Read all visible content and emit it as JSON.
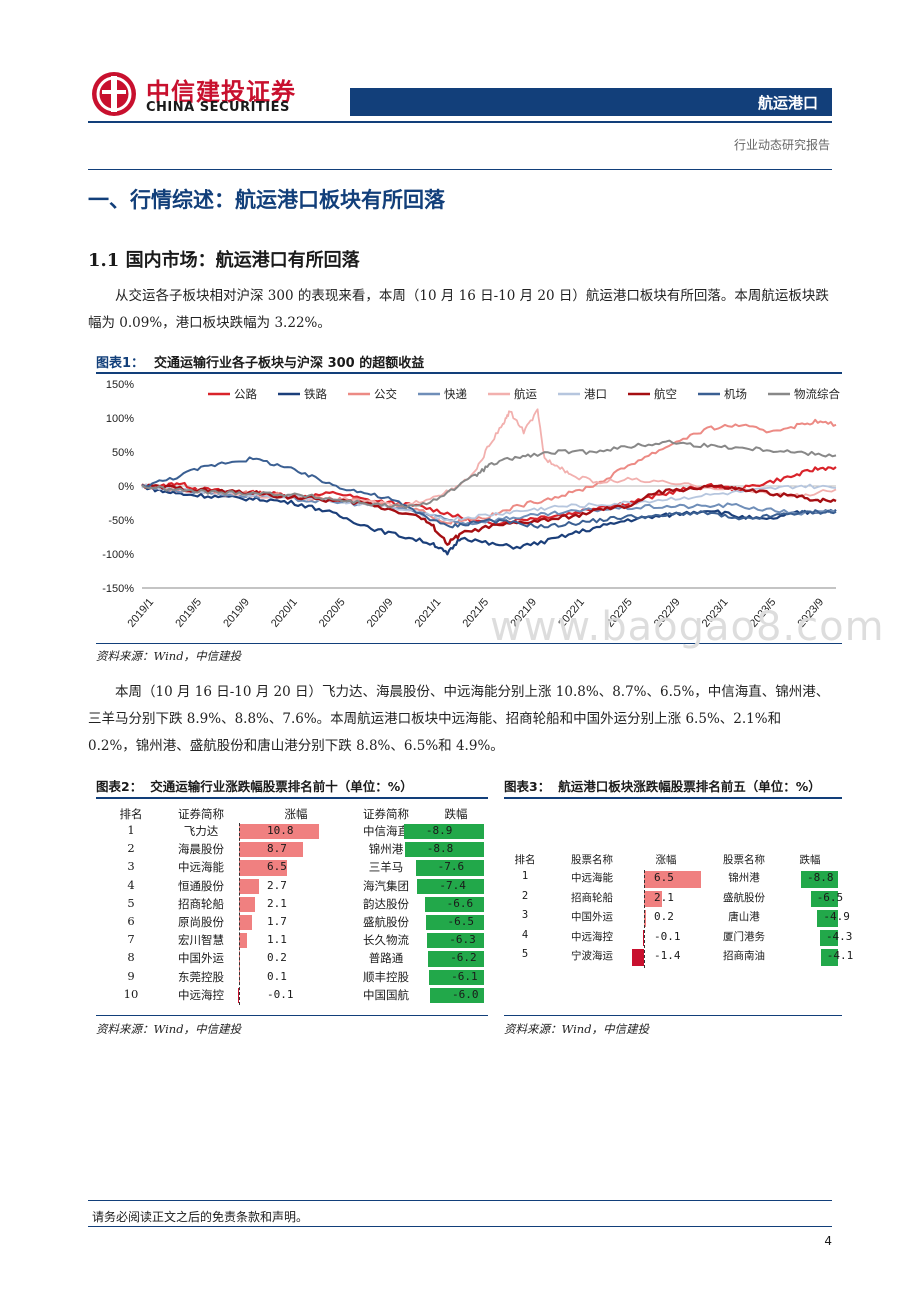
{
  "header": {
    "logo_cn": "中信建投证券",
    "logo_en": "CHINA SECURITIES",
    "sector": "航运港口",
    "report_type": "行业动态研究报告"
  },
  "section_title": "一、行情综述：航运港口板块有所回落",
  "subsection_title": "1.1 国内市场：航运港口有所回落",
  "paragraph1": "从交运各子板块相对沪深 300 的表现来看，本周（10 月 16 日-10 月 20 日）航运港口板块有所回落。本周航运板块跌幅为 0.09%，港口板块跌幅为 3.22%。",
  "paragraph2": "本周（10 月 16 日-10 月 20 日）飞力达、海晨股份、中远海能分别上涨 10.8%、8.7%、6.5%，中信海直、锦州港、三羊马分别下跌 8.9%、8.8%、7.6%。本周航运港口板块中远海能、招商轮船和中国外运分别上涨 6.5%、2.1%和 0.2%，锦州港、盛航股份和唐山港分别下跌 8.8%、6.5%和 4.9%。",
  "watermark": "www.baogao8.com",
  "fig1": {
    "num": "图表1：",
    "title": "交通运输行业各子板块与沪深 300 的超额收益",
    "source": "资料来源：Wind，中信建投"
  },
  "chart_data": {
    "type": "line",
    "title": "",
    "ylim": [
      -150,
      150
    ],
    "y_ticks": [
      "150%",
      "100%",
      "50%",
      "0%",
      "-50%",
      "-100%",
      "-150%"
    ],
    "x_ticks": [
      "2019/1",
      "2019/5",
      "2019/9",
      "2020/1",
      "2020/5",
      "2020/9",
      "2021/1",
      "2021/5",
      "2021/9",
      "2022/1",
      "2022/5",
      "2022/9",
      "2023/1",
      "2023/5",
      "2023/9"
    ],
    "legend_position": "top",
    "series": [
      {
        "name": "公路",
        "color": "#d9232a",
        "width": 2.2,
        "x": [
          0,
          0.02,
          0.05,
          0.08,
          0.12,
          0.16,
          0.2,
          0.24,
          0.28,
          0.32,
          0.36,
          0.4,
          0.44,
          0.47,
          0.5,
          0.54,
          0.58,
          0.62,
          0.66,
          0.7,
          0.74,
          0.78,
          0.82,
          0.86,
          0.9,
          0.94,
          0.97,
          1.0
        ],
        "y": [
          0,
          -3,
          5,
          -4,
          -8,
          -10,
          -12,
          -15,
          -10,
          -20,
          -25,
          -30,
          -40,
          -50,
          -55,
          -50,
          -45,
          -40,
          -30,
          -25,
          -15,
          -5,
          0,
          -5,
          5,
          15,
          25,
          28
        ]
      },
      {
        "name": "铁路",
        "color": "#1b3f7a",
        "width": 2.2,
        "x": [
          0,
          0.03,
          0.06,
          0.1,
          0.14,
          0.18,
          0.22,
          0.26,
          0.3,
          0.34,
          0.38,
          0.42,
          0.44,
          0.46,
          0.5,
          0.54,
          0.58,
          0.62,
          0.66,
          0.7,
          0.74,
          0.78,
          0.82,
          0.86,
          0.9,
          0.94,
          0.97,
          1.0
        ],
        "y": [
          0,
          -8,
          -12,
          -15,
          -18,
          -20,
          -25,
          -35,
          -50,
          -65,
          -75,
          -85,
          -100,
          -75,
          -85,
          -90,
          -82,
          -70,
          -60,
          -50,
          -45,
          -40,
          -35,
          -45,
          -50,
          -40,
          -38,
          -35
        ]
      },
      {
        "name": "公交",
        "color": "#ec8a84",
        "width": 2.0,
        "x": [
          0,
          0.04,
          0.08,
          0.12,
          0.16,
          0.2,
          0.24,
          0.28,
          0.32,
          0.36,
          0.4,
          0.44,
          0.46,
          0.5,
          0.54,
          0.58,
          0.62,
          0.66,
          0.7,
          0.74,
          0.78,
          0.82,
          0.86,
          0.9,
          0.94,
          0.97,
          1.0
        ],
        "y": [
          0,
          -5,
          -8,
          -12,
          -10,
          -12,
          -18,
          -20,
          -22,
          -30,
          -35,
          -55,
          -50,
          -45,
          -30,
          -20,
          -10,
          5,
          30,
          50,
          70,
          85,
          90,
          80,
          88,
          95,
          90
        ]
      },
      {
        "name": "快递",
        "color": "#6f8eb8",
        "width": 2.0,
        "x": [
          0,
          0.05,
          0.1,
          0.15,
          0.2,
          0.25,
          0.3,
          0.35,
          0.4,
          0.44,
          0.47,
          0.52,
          0.56,
          0.6,
          0.65,
          0.7,
          0.75,
          0.8,
          0.85,
          0.9,
          0.95,
          1.0
        ],
        "y": [
          0,
          -6,
          -10,
          -14,
          -18,
          -22,
          -25,
          -30,
          -38,
          -50,
          -55,
          -48,
          -44,
          -40,
          -35,
          -32,
          -30,
          -30,
          -28,
          -35,
          -40,
          -38
        ]
      },
      {
        "name": "航运",
        "color": "#f2b0ae",
        "width": 1.8,
        "x": [
          0,
          0.06,
          0.12,
          0.18,
          0.24,
          0.3,
          0.34,
          0.38,
          0.42,
          0.45,
          0.48,
          0.5,
          0.52,
          0.53,
          0.55,
          0.57,
          0.58,
          0.6,
          0.62,
          0.66,
          0.7,
          0.75,
          0.8,
          0.85,
          0.9,
          0.95,
          1.0
        ],
        "y": [
          0,
          -5,
          -10,
          -15,
          -18,
          -20,
          -25,
          -30,
          -15,
          -5,
          20,
          60,
          90,
          110,
          80,
          110,
          40,
          30,
          15,
          5,
          10,
          5,
          0,
          -5,
          -10,
          -15,
          -5
        ]
      },
      {
        "name": "港口",
        "color": "#b6c6de",
        "width": 1.8,
        "x": [
          0,
          0.05,
          0.1,
          0.15,
          0.2,
          0.25,
          0.3,
          0.35,
          0.4,
          0.44,
          0.48,
          0.52,
          0.56,
          0.6,
          0.65,
          0.7,
          0.75,
          0.8,
          0.85,
          0.9,
          0.95,
          1.0
        ],
        "y": [
          0,
          -5,
          -8,
          -12,
          -15,
          -18,
          -25,
          -30,
          -40,
          -50,
          -45,
          -40,
          -35,
          -30,
          -28,
          -25,
          -20,
          -15,
          -10,
          -5,
          0,
          -3
        ]
      },
      {
        "name": "航空",
        "color": "#a50e12",
        "width": 2.4,
        "x": [
          0,
          0.04,
          0.08,
          0.12,
          0.16,
          0.2,
          0.24,
          0.28,
          0.32,
          0.36,
          0.4,
          0.42,
          0.44,
          0.46,
          0.5,
          0.54,
          0.58,
          0.62,
          0.66,
          0.7,
          0.74,
          0.78,
          0.82,
          0.86,
          0.9,
          0.94,
          0.97,
          1.0
        ],
        "y": [
          0,
          -2,
          -6,
          -8,
          -10,
          -15,
          -18,
          -22,
          -25,
          -35,
          -45,
          -60,
          -85,
          -70,
          -60,
          -55,
          -50,
          -45,
          -35,
          -30,
          -10,
          -5,
          0,
          -5,
          -10,
          -15,
          -20,
          -22
        ]
      },
      {
        "name": "机场",
        "color": "#3a5f92",
        "width": 2.0,
        "x": [
          0,
          0.04,
          0.08,
          0.12,
          0.16,
          0.2,
          0.24,
          0.28,
          0.32,
          0.36,
          0.4,
          0.44,
          0.47,
          0.5,
          0.54,
          0.58,
          0.62,
          0.66,
          0.7,
          0.74,
          0.78,
          0.82,
          0.86,
          0.9,
          0.94,
          0.97,
          1.0
        ],
        "y": [
          0,
          10,
          25,
          35,
          40,
          30,
          15,
          0,
          -10,
          -20,
          -40,
          -60,
          -55,
          -50,
          -55,
          -60,
          -55,
          -50,
          -45,
          -45,
          -40,
          -40,
          -50,
          -45,
          -40,
          -38,
          -38
        ]
      },
      {
        "name": "物流综合",
        "color": "#888888",
        "width": 2.0,
        "x": [
          0,
          0.04,
          0.08,
          0.12,
          0.16,
          0.2,
          0.24,
          0.28,
          0.32,
          0.36,
          0.4,
          0.44,
          0.48,
          0.5,
          0.53,
          0.56,
          0.6,
          0.64,
          0.68,
          0.72,
          0.76,
          0.8,
          0.84,
          0.88,
          0.92,
          0.96,
          1.0
        ],
        "y": [
          0,
          -5,
          -8,
          -10,
          -10,
          -12,
          -15,
          -20,
          -25,
          -30,
          -30,
          -10,
          15,
          30,
          40,
          45,
          50,
          50,
          55,
          60,
          65,
          60,
          58,
          55,
          52,
          48,
          45
        ]
      }
    ]
  },
  "fig2": {
    "num": "图表2：",
    "title": "交通运输行业涨跌幅股票排名前十（单位：%）",
    "source": "资料来源：Wind，中信建投",
    "headers": [
      "排名",
      "证券简称",
      "涨幅",
      "证券简称",
      "跌幅"
    ],
    "rows": [
      {
        "rank": "1",
        "up_name": "飞力达",
        "up": 10.8,
        "up_label": "10.8",
        "down_name": "中信海直",
        "down": -8.9,
        "down_label": "-8.9"
      },
      {
        "rank": "2",
        "up_name": "海晨股份",
        "up": 8.7,
        "up_label": "8.7",
        "down_name": "锦州港",
        "down": -8.8,
        "down_label": "-8.8"
      },
      {
        "rank": "3",
        "up_name": "中远海能",
        "up": 6.5,
        "up_label": "6.5",
        "down_name": "三羊马",
        "down": -7.6,
        "down_label": "-7.6"
      },
      {
        "rank": "4",
        "up_name": "恒通股份",
        "up": 2.7,
        "up_label": "2.7",
        "down_name": "海汽集团",
        "down": -7.4,
        "down_label": "-7.4"
      },
      {
        "rank": "5",
        "up_name": "招商轮船",
        "up": 2.1,
        "up_label": "2.1",
        "down_name": "韵达股份",
        "down": -6.6,
        "down_label": "-6.6"
      },
      {
        "rank": "6",
        "up_name": "原尚股份",
        "up": 1.7,
        "up_label": "1.7",
        "down_name": "盛航股份",
        "down": -6.5,
        "down_label": "-6.5"
      },
      {
        "rank": "7",
        "up_name": "宏川智慧",
        "up": 1.1,
        "up_label": "1.1",
        "down_name": "长久物流",
        "down": -6.3,
        "down_label": "-6.3"
      },
      {
        "rank": "8",
        "up_name": "中国外运",
        "up": 0.2,
        "up_label": "0.2",
        "down_name": "普路通",
        "down": -6.2,
        "down_label": "-6.2"
      },
      {
        "rank": "9",
        "up_name": "东莞控股",
        "up": 0.1,
        "up_label": "0.1",
        "down_name": "顺丰控股",
        "down": -6.1,
        "down_label": "-6.1"
      },
      {
        "rank": "10",
        "up_name": "中远海控",
        "up": -0.1,
        "up_label": "-0.1",
        "down_name": "中国国航",
        "down": -6.0,
        "down_label": "-6.0"
      }
    ]
  },
  "fig3": {
    "num": "图表3：",
    "title": "航运港口板块涨跌幅股票排名前五（单位：%）",
    "source": "资料来源：Wind，中信建投",
    "headers": [
      "排名",
      "股票名称",
      "涨幅",
      "股票名称",
      "跌幅"
    ],
    "rows": [
      {
        "rank": "1",
        "up_name": "中远海能",
        "up": 6.5,
        "up_label": "6.5",
        "down_name": "锦州港",
        "down": -8.8,
        "down_label": "-8.8"
      },
      {
        "rank": "2",
        "up_name": "招商轮船",
        "up": 2.1,
        "up_label": "2.1",
        "down_name": "盛航股份",
        "down": -6.5,
        "down_label": "-6.5"
      },
      {
        "rank": "3",
        "up_name": "中国外运",
        "up": 0.2,
        "up_label": "0.2",
        "down_name": "唐山港",
        "down": -4.9,
        "down_label": "-4.9"
      },
      {
        "rank": "4",
        "up_name": "中远海控",
        "up": -0.1,
        "up_label": "-0.1",
        "down_name": "厦门港务",
        "down": -4.3,
        "down_label": "-4.3"
      },
      {
        "rank": "5",
        "up_name": "宁波海运",
        "up": -1.4,
        "up_label": "-1.4",
        "down_name": "招商南油",
        "down": -4.1,
        "down_label": "-4.1"
      }
    ]
  },
  "colors": {
    "brand_red": "#c8102e",
    "brand_blue": "#123f7a",
    "up_bar": "#f08080",
    "down_bar": "#22a84a"
  },
  "footer": {
    "disclaimer": "请务必阅读正文之后的免责条款和声明。",
    "page": "4"
  }
}
